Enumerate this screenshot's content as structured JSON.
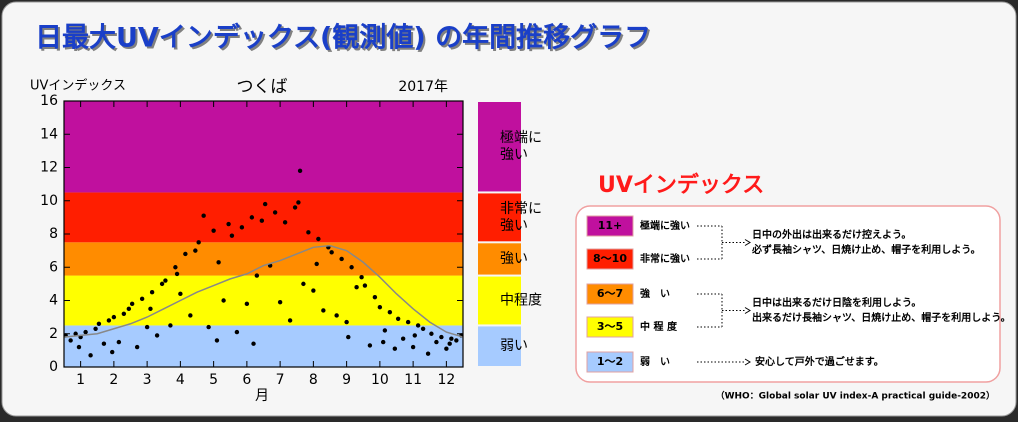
{
  "header": {
    "title": "日最大UVインデックス(観測値) の年間推移グラフ"
  },
  "chart_data": {
    "type": "scatter",
    "title": "つくば",
    "year": "2017年",
    "y_label": "UVインデックス",
    "x_label": "月",
    "xlim": [
      0.5,
      12.5
    ],
    "ylim": [
      0,
      16
    ],
    "xticks": [
      1,
      2,
      3,
      4,
      5,
      6,
      7,
      8,
      9,
      10,
      11,
      12
    ],
    "yticks": [
      0,
      2,
      4,
      6,
      8,
      10,
      12,
      14,
      16
    ],
    "bands": [
      {
        "from": 0,
        "to": 2.5,
        "color": "#a6cbff",
        "label": [
          "弱い"
        ]
      },
      {
        "from": 2.5,
        "to": 5.5,
        "color": "#ffff00",
        "label": [
          "中程度"
        ]
      },
      {
        "from": 5.5,
        "to": 7.5,
        "color": "#ff8c00",
        "label": [
          "強い"
        ]
      },
      {
        "from": 7.5,
        "to": 10.5,
        "color": "#ff1e00",
        "label": [
          "非常に",
          "強い"
        ]
      },
      {
        "from": 10.5,
        "to": 16,
        "color": "#c0109e",
        "label": [
          "極端に",
          "強い"
        ]
      }
    ],
    "series": [
      {
        "kind": "points",
        "color": "#000000",
        "x": [
          0.55,
          0.7,
          0.85,
          1.0,
          1.15,
          1.3,
          1.45,
          0.95,
          1.55,
          1.7,
          1.85,
          2.0,
          2.15,
          2.3,
          2.45,
          1.95,
          2.55,
          2.7,
          2.85,
          3.0,
          3.15,
          3.3,
          3.45,
          3.1,
          3.55,
          3.7,
          3.85,
          4.0,
          4.15,
          4.3,
          4.45,
          3.9,
          4.55,
          4.7,
          4.85,
          5.0,
          5.15,
          5.3,
          5.45,
          5.1,
          5.55,
          5.7,
          5.85,
          6.0,
          6.15,
          6.3,
          6.45,
          6.2,
          6.55,
          6.7,
          6.85,
          7.0,
          7.15,
          7.3,
          7.45,
          7.6,
          7.55,
          7.7,
          7.85,
          8.0,
          8.15,
          8.3,
          8.45,
          8.1,
          8.55,
          8.7,
          8.85,
          9.0,
          9.15,
          9.3,
          9.45,
          9.05,
          9.55,
          9.7,
          9.85,
          10.0,
          10.15,
          10.3,
          10.45,
          10.1,
          10.55,
          10.7,
          10.85,
          11.0,
          11.15,
          11.3,
          11.45,
          11.05,
          11.55,
          11.7,
          11.85,
          12.0,
          12.15,
          12.3,
          12.45,
          12.1
        ],
        "values": [
          1.9,
          1.6,
          2.0,
          1.8,
          2.1,
          0.7,
          2.3,
          1.2,
          2.6,
          1.4,
          2.8,
          3.0,
          1.5,
          3.2,
          3.5,
          0.9,
          3.8,
          1.2,
          4.1,
          2.4,
          4.5,
          1.9,
          5.0,
          3.5,
          5.2,
          2.5,
          6.0,
          4.4,
          6.8,
          3.1,
          7.0,
          5.6,
          7.5,
          9.1,
          2.4,
          8.2,
          6.3,
          4.0,
          8.6,
          1.6,
          7.9,
          2.1,
          8.4,
          3.8,
          9.0,
          5.5,
          8.8,
          1.4,
          9.8,
          6.1,
          9.3,
          3.9,
          8.7,
          2.8,
          9.6,
          11.8,
          9.9,
          5.0,
          8.1,
          4.6,
          7.7,
          3.4,
          7.2,
          6.2,
          6.9,
          3.1,
          6.5,
          2.7,
          6.0,
          4.8,
          5.4,
          1.8,
          4.9,
          1.3,
          4.2,
          3.6,
          2.2,
          3.3,
          1.1,
          1.5,
          2.9,
          1.7,
          2.7,
          1.2,
          2.5,
          2.3,
          0.8,
          1.9,
          2.0,
          1.5,
          1.8,
          1.1,
          1.7,
          1.6,
          1.9,
          1.4
        ]
      },
      {
        "kind": "line",
        "color": "#888888",
        "x": [
          0.5,
          1,
          1.5,
          2,
          2.5,
          3,
          3.5,
          4,
          4.5,
          5,
          5.5,
          6,
          6.5,
          7,
          7.5,
          8,
          8.5,
          9,
          9.5,
          10,
          10.5,
          11,
          11.5,
          12,
          12.5
        ],
        "values": [
          1.8,
          1.9,
          2.0,
          2.3,
          2.6,
          3.0,
          3.5,
          4.0,
          4.5,
          4.9,
          5.3,
          5.6,
          6.1,
          6.4,
          6.8,
          7.2,
          7.3,
          7.0,
          6.3,
          5.4,
          4.4,
          3.5,
          2.7,
          2.1,
          1.8
        ]
      }
    ]
  },
  "panel": {
    "title": "UVインデックス",
    "rows": [
      {
        "range": "11+",
        "label": "極端に強い",
        "color": "#c0109e"
      },
      {
        "range": "8〜10",
        "label": "非常に強い",
        "color": "#ff1e00"
      },
      {
        "range": "6〜7",
        "label": "強　い",
        "color": "#ff8c00"
      },
      {
        "range": "3〜5",
        "label": "中 程 度",
        "color": "#ffff00"
      },
      {
        "range": "1〜2",
        "label": "弱　い",
        "color": "#a6cbff"
      }
    ],
    "notes": [
      [
        "日中の外出は出来るだけ控えよう。",
        "必ず長袖シャツ、日焼け止め、帽子を利用しよう。"
      ],
      [
        "日中は出来るだけ日陰を利用しよう。",
        "出来るだけ長袖シャツ、日焼け止め、帽子を利用しよう。"
      ],
      [
        "安心して戸外で過ごせます。"
      ]
    ],
    "source": "（WHO：Global solar UV index-A practical guide-2002）"
  }
}
